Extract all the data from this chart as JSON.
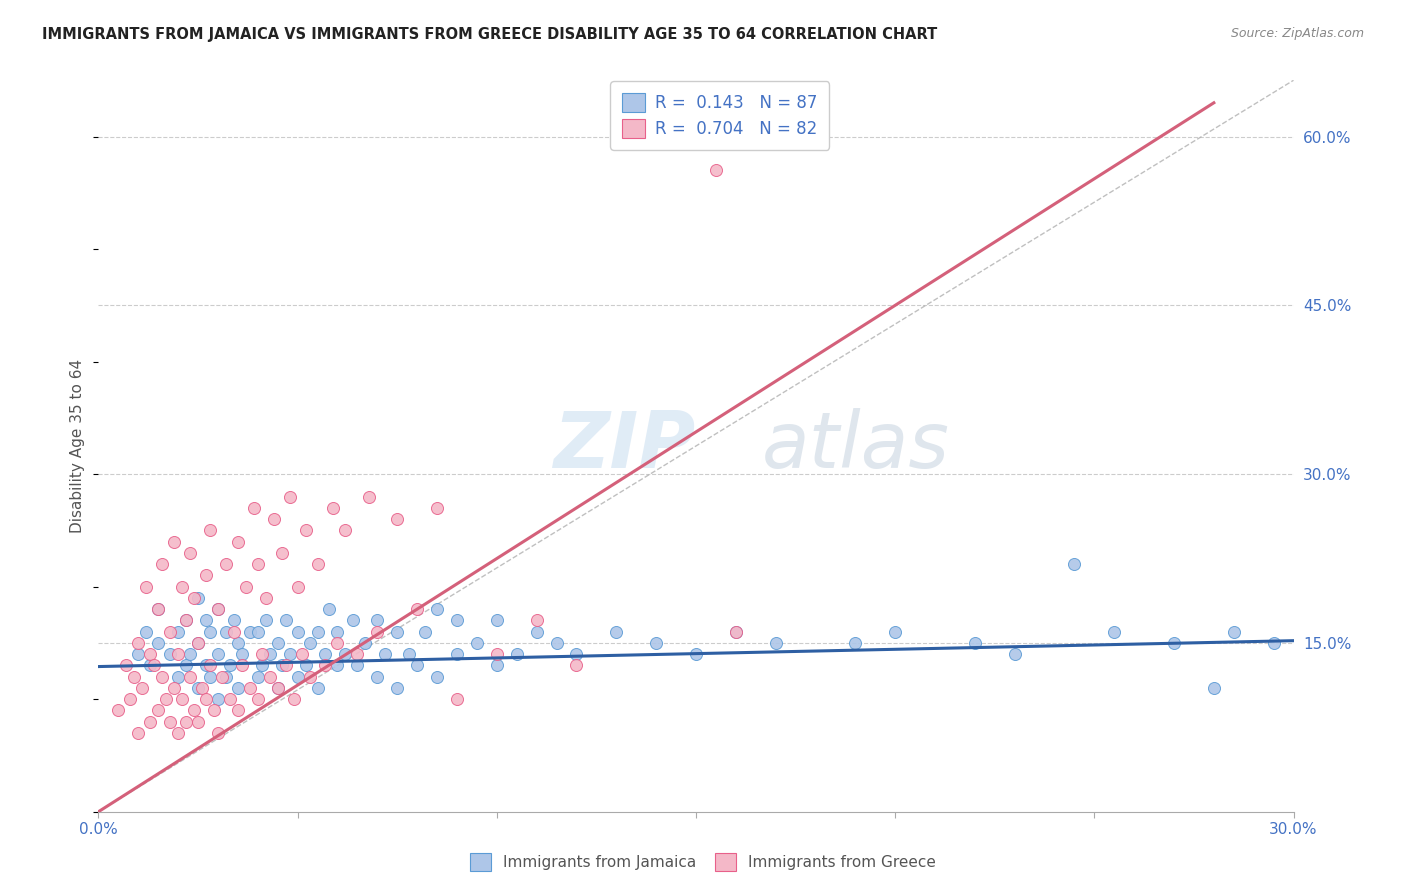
{
  "title": "IMMIGRANTS FROM JAMAICA VS IMMIGRANTS FROM GREECE DISABILITY AGE 35 TO 64 CORRELATION CHART",
  "source": "Source: ZipAtlas.com",
  "ylabel": "Disability Age 35 to 64",
  "xlim": [
    0.0,
    0.3
  ],
  "ylim": [
    0.0,
    0.65
  ],
  "yticks": [
    0.15,
    0.3,
    0.45,
    0.6
  ],
  "ytick_labels": [
    "15.0%",
    "30.0%",
    "45.0%",
    "60.0%"
  ],
  "xtick_labels": [
    "0.0%",
    "",
    "",
    "",
    "",
    "",
    "30.0%"
  ],
  "xtick_pos": [
    0.0,
    0.05,
    0.1,
    0.15,
    0.2,
    0.25,
    0.3
  ],
  "jamaica_color": "#aec6e8",
  "jamaica_edge": "#5b9bd5",
  "greece_color": "#f4b8c8",
  "greece_edge": "#e8608a",
  "jamaica_R": 0.143,
  "jamaica_N": 87,
  "greece_R": 0.704,
  "greece_N": 82,
  "trend_jamaica_color": "#2e5fa3",
  "trend_greece_color": "#d4607a",
  "diagonal_color": "#b0b0b0",
  "watermark_zip": "ZIP",
  "watermark_atlas": "atlas",
  "legend_color": "#4472c4",
  "legend_N_color": "#c0392b",
  "jamaica_scatter_x": [
    0.01,
    0.012,
    0.013,
    0.015,
    0.015,
    0.018,
    0.02,
    0.02,
    0.022,
    0.022,
    0.023,
    0.025,
    0.025,
    0.025,
    0.027,
    0.027,
    0.028,
    0.028,
    0.03,
    0.03,
    0.03,
    0.032,
    0.032,
    0.033,
    0.034,
    0.035,
    0.035,
    0.036,
    0.038,
    0.04,
    0.04,
    0.041,
    0.042,
    0.043,
    0.045,
    0.045,
    0.046,
    0.047,
    0.048,
    0.05,
    0.05,
    0.052,
    0.053,
    0.055,
    0.055,
    0.057,
    0.058,
    0.06,
    0.06,
    0.062,
    0.064,
    0.065,
    0.067,
    0.07,
    0.07,
    0.072,
    0.075,
    0.075,
    0.078,
    0.08,
    0.082,
    0.085,
    0.085,
    0.09,
    0.09,
    0.095,
    0.1,
    0.1,
    0.105,
    0.11,
    0.115,
    0.12,
    0.13,
    0.14,
    0.15,
    0.16,
    0.17,
    0.19,
    0.2,
    0.22,
    0.23,
    0.245,
    0.255,
    0.27,
    0.28,
    0.285,
    0.295
  ],
  "jamaica_scatter_y": [
    0.14,
    0.16,
    0.13,
    0.15,
    0.18,
    0.14,
    0.12,
    0.16,
    0.13,
    0.17,
    0.14,
    0.11,
    0.15,
    0.19,
    0.13,
    0.17,
    0.12,
    0.16,
    0.1,
    0.14,
    0.18,
    0.12,
    0.16,
    0.13,
    0.17,
    0.11,
    0.15,
    0.14,
    0.16,
    0.12,
    0.16,
    0.13,
    0.17,
    0.14,
    0.11,
    0.15,
    0.13,
    0.17,
    0.14,
    0.12,
    0.16,
    0.13,
    0.15,
    0.11,
    0.16,
    0.14,
    0.18,
    0.13,
    0.16,
    0.14,
    0.17,
    0.13,
    0.15,
    0.12,
    0.17,
    0.14,
    0.11,
    0.16,
    0.14,
    0.13,
    0.16,
    0.12,
    0.18,
    0.14,
    0.17,
    0.15,
    0.13,
    0.17,
    0.14,
    0.16,
    0.15,
    0.14,
    0.16,
    0.15,
    0.14,
    0.16,
    0.15,
    0.15,
    0.16,
    0.15,
    0.14,
    0.22,
    0.16,
    0.15,
    0.11,
    0.16,
    0.15
  ],
  "greece_scatter_x": [
    0.005,
    0.007,
    0.008,
    0.009,
    0.01,
    0.01,
    0.011,
    0.012,
    0.013,
    0.013,
    0.014,
    0.015,
    0.015,
    0.016,
    0.016,
    0.017,
    0.018,
    0.018,
    0.019,
    0.019,
    0.02,
    0.02,
    0.021,
    0.021,
    0.022,
    0.022,
    0.023,
    0.023,
    0.024,
    0.024,
    0.025,
    0.025,
    0.026,
    0.027,
    0.027,
    0.028,
    0.028,
    0.029,
    0.03,
    0.03,
    0.031,
    0.032,
    0.033,
    0.034,
    0.035,
    0.035,
    0.036,
    0.037,
    0.038,
    0.039,
    0.04,
    0.04,
    0.041,
    0.042,
    0.043,
    0.044,
    0.045,
    0.046,
    0.047,
    0.048,
    0.049,
    0.05,
    0.051,
    0.052,
    0.053,
    0.055,
    0.057,
    0.059,
    0.06,
    0.062,
    0.065,
    0.068,
    0.07,
    0.075,
    0.08,
    0.085,
    0.09,
    0.1,
    0.11,
    0.12,
    0.155,
    0.16
  ],
  "greece_scatter_y": [
    0.09,
    0.13,
    0.1,
    0.12,
    0.07,
    0.15,
    0.11,
    0.2,
    0.08,
    0.14,
    0.13,
    0.09,
    0.18,
    0.12,
    0.22,
    0.1,
    0.08,
    0.16,
    0.11,
    0.24,
    0.07,
    0.14,
    0.1,
    0.2,
    0.08,
    0.17,
    0.12,
    0.23,
    0.09,
    0.19,
    0.08,
    0.15,
    0.11,
    0.1,
    0.21,
    0.13,
    0.25,
    0.09,
    0.07,
    0.18,
    0.12,
    0.22,
    0.1,
    0.16,
    0.09,
    0.24,
    0.13,
    0.2,
    0.11,
    0.27,
    0.1,
    0.22,
    0.14,
    0.19,
    0.12,
    0.26,
    0.11,
    0.23,
    0.13,
    0.28,
    0.1,
    0.2,
    0.14,
    0.25,
    0.12,
    0.22,
    0.13,
    0.27,
    0.15,
    0.25,
    0.14,
    0.28,
    0.16,
    0.26,
    0.18,
    0.27,
    0.1,
    0.14,
    0.17,
    0.13,
    0.57,
    0.16
  ],
  "jamaica_trend_x": [
    0.0,
    0.3
  ],
  "jamaica_trend_y": [
    0.129,
    0.152
  ],
  "greece_trend_x": [
    0.0,
    0.28
  ],
  "greece_trend_y": [
    0.0,
    0.63
  ]
}
